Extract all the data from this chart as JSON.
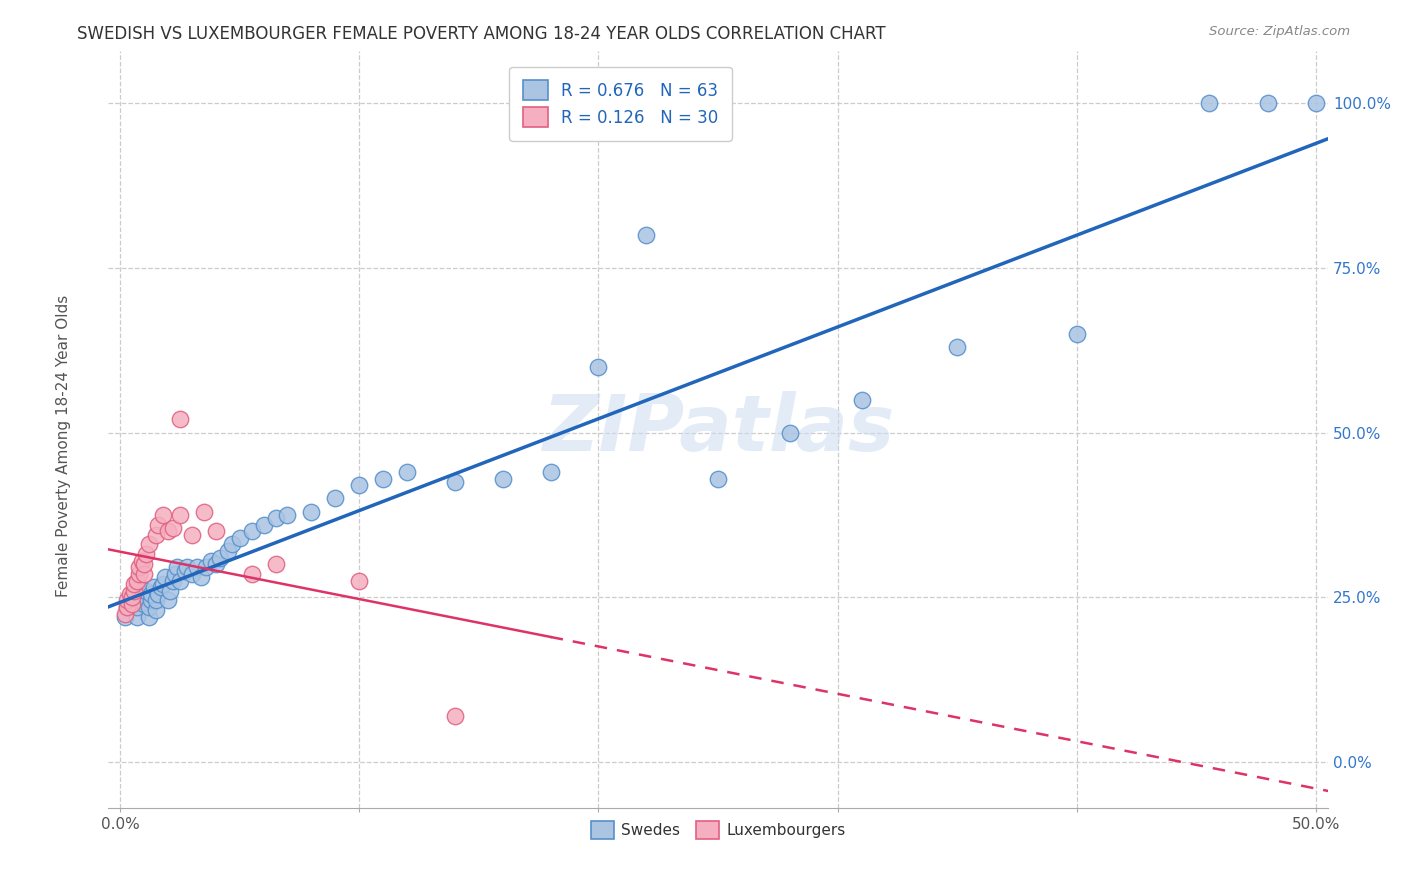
{
  "title": "SWEDISH VS LUXEMBOURGER FEMALE POVERTY AMONG 18-24 YEAR OLDS CORRELATION CHART",
  "source": "Source: ZipAtlas.com",
  "ylabel": "Female Poverty Among 18-24 Year Olds",
  "watermark": "ZIPatlas",
  "blue_R": 0.676,
  "blue_N": 63,
  "pink_R": 0.126,
  "pink_N": 30,
  "blue_label": "Swedes",
  "pink_label": "Luxembourgers",
  "xlim": [
    -0.005,
    0.505
  ],
  "ylim": [
    -0.07,
    1.08
  ],
  "blue_color": "#aac4e2",
  "pink_color": "#f5afc0",
  "blue_edge_color": "#5590cc",
  "pink_edge_color": "#e06080",
  "blue_line_color": "#2266bb",
  "pink_line_color": "#dd3366",
  "background_color": "#ffffff",
  "grid_color": "#cccccc",
  "xtick_positions": [
    0.0,
    0.1,
    0.2,
    0.3,
    0.4,
    0.5
  ],
  "ytick_positions": [
    0.0,
    0.25,
    0.5,
    0.75,
    1.0
  ],
  "ytick_labels": [
    "0.0%",
    "25.0%",
    "50.0%",
    "75.0%",
    "100.0%"
  ],
  "title_color": "#333333",
  "axis_label_color": "#555555",
  "ytick_color": "#3377cc",
  "xtick_color": "#555555",
  "blue_x": [
    0.002,
    0.003,
    0.004,
    0.005,
    0.005,
    0.007,
    0.007,
    0.008,
    0.009,
    0.01,
    0.01,
    0.011,
    0.012,
    0.012,
    0.013,
    0.013,
    0.014,
    0.015,
    0.015,
    0.016,
    0.017,
    0.018,
    0.019,
    0.02,
    0.021,
    0.022,
    0.023,
    0.024,
    0.025,
    0.027,
    0.028,
    0.03,
    0.032,
    0.034,
    0.036,
    0.038,
    0.04,
    0.042,
    0.045,
    0.047,
    0.05,
    0.055,
    0.06,
    0.065,
    0.07,
    0.08,
    0.09,
    0.1,
    0.11,
    0.12,
    0.14,
    0.16,
    0.18,
    0.2,
    0.22,
    0.25,
    0.28,
    0.31,
    0.35,
    0.4,
    0.455,
    0.48,
    0.5
  ],
  "blue_y": [
    0.22,
    0.235,
    0.24,
    0.245,
    0.25,
    0.22,
    0.235,
    0.245,
    0.255,
    0.24,
    0.25,
    0.26,
    0.22,
    0.235,
    0.245,
    0.255,
    0.265,
    0.23,
    0.245,
    0.255,
    0.265,
    0.27,
    0.28,
    0.245,
    0.26,
    0.275,
    0.285,
    0.295,
    0.275,
    0.29,
    0.295,
    0.285,
    0.295,
    0.28,
    0.295,
    0.305,
    0.3,
    0.31,
    0.32,
    0.33,
    0.34,
    0.35,
    0.36,
    0.37,
    0.375,
    0.38,
    0.4,
    0.42,
    0.43,
    0.44,
    0.425,
    0.43,
    0.44,
    0.6,
    0.8,
    0.43,
    0.5,
    0.55,
    0.63,
    0.65,
    1.0,
    1.0,
    1.0
  ],
  "pink_x": [
    0.002,
    0.003,
    0.003,
    0.004,
    0.005,
    0.005,
    0.006,
    0.006,
    0.007,
    0.008,
    0.008,
    0.009,
    0.01,
    0.01,
    0.011,
    0.012,
    0.015,
    0.016,
    0.018,
    0.02,
    0.022,
    0.025,
    0.025,
    0.03,
    0.035,
    0.04,
    0.055,
    0.065,
    0.1,
    0.14
  ],
  "pink_y": [
    0.225,
    0.235,
    0.245,
    0.255,
    0.24,
    0.25,
    0.26,
    0.27,
    0.275,
    0.285,
    0.295,
    0.305,
    0.285,
    0.3,
    0.315,
    0.33,
    0.345,
    0.36,
    0.375,
    0.35,
    0.355,
    0.375,
    0.52,
    0.345,
    0.38,
    0.35,
    0.285,
    0.3,
    0.275,
    0.07
  ]
}
